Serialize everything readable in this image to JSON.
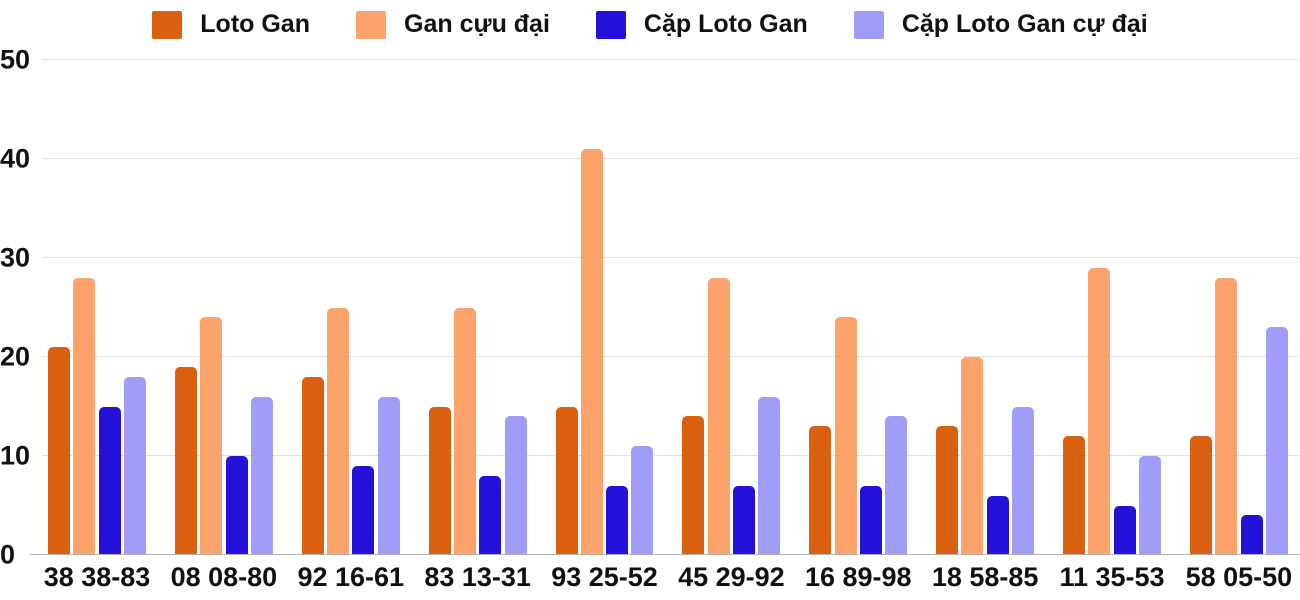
{
  "chart_data": {
    "type": "bar",
    "title": "",
    "categories": [
      "38 38-83",
      "08 08-80",
      "92 16-61",
      "83 13-31",
      "93 25-52",
      "45 29-92",
      "16 89-98",
      "18 58-85",
      "11 35-53",
      "58 05-50"
    ],
    "series": [
      {
        "name": "Loto Gan",
        "color": "#d9600f",
        "values": [
          21,
          19,
          18,
          15,
          15,
          14,
          13,
          13,
          12,
          12
        ]
      },
      {
        "name": "Gan cựu đại",
        "color": "#fca36b",
        "values": [
          28,
          24,
          25,
          25,
          41,
          28,
          24,
          20,
          29,
          28
        ]
      },
      {
        "name": "Cặp Loto Gan",
        "color": "#2512da",
        "values": [
          15,
          10,
          9,
          8,
          7,
          7,
          7,
          6,
          5,
          4
        ]
      },
      {
        "name": "Cặp Loto Gan cự đại",
        "color": "#a19cf8",
        "values": [
          18,
          16,
          16,
          14,
          11,
          16,
          14,
          15,
          10,
          23
        ]
      }
    ],
    "xlabel": "",
    "ylabel": "",
    "ylim": [
      0,
      50
    ],
    "yticks": [
      0,
      10,
      20,
      30,
      40,
      50
    ],
    "grid": true,
    "legend_position": "top"
  },
  "colors": {
    "background": "#ffffff",
    "gridline": "#e2e2e2",
    "axis_line": "#b3b3b3",
    "text": "#111111"
  }
}
